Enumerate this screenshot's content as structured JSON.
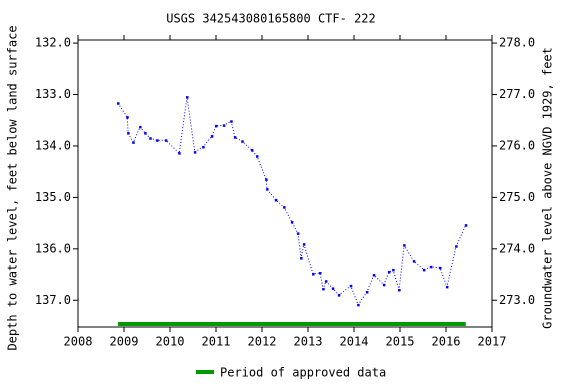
{
  "chart_data": {
    "type": "line",
    "title": "USGS 342543080165800 CTF- 222",
    "y_label": "Depth to water level, feet below land surface",
    "y2_label": "Groundwater level above NGVD 1929, feet",
    "xlim": [
      2008,
      2017
    ],
    "xticks": [
      2008,
      2009,
      2010,
      2011,
      2012,
      2013,
      2014,
      2015,
      2016,
      2017
    ],
    "ylim": [
      131.94,
      137.52
    ],
    "yticks": [
      {
        "value": 132,
        "label": "132.0"
      },
      {
        "value": 133,
        "label": "133.0"
      },
      {
        "value": 134,
        "label": "134.0"
      },
      {
        "value": 135,
        "label": "135.0"
      },
      {
        "value": 136,
        "label": "136.0"
      },
      {
        "value": 137,
        "label": "137.0"
      }
    ],
    "y_inverted": true,
    "y2lim": [
      278.06,
      272.48
    ],
    "y2ticks": [
      {
        "value": 278,
        "label": "278.0"
      },
      {
        "value": 277,
        "label": "277.0"
      },
      {
        "value": 276,
        "label": "276.0"
      },
      {
        "value": 275,
        "label": "275.0"
      },
      {
        "value": 274,
        "label": "274.0"
      },
      {
        "value": 273,
        "label": "273.0"
      }
    ],
    "x": [
      2008.87,
      2009.07,
      2009.09,
      2009.2,
      2009.35,
      2009.46,
      2009.57,
      2009.72,
      2009.91,
      2010.2,
      2010.37,
      2010.54,
      2010.72,
      2010.91,
      2011.0,
      2011.17,
      2011.33,
      2011.41,
      2011.57,
      2011.78,
      2011.89,
      2012.09,
      2012.11,
      2012.3,
      2012.48,
      2012.65,
      2012.78,
      2012.85,
      2012.91,
      2013.11,
      2013.26,
      2013.33,
      2013.39,
      2013.54,
      2013.67,
      2013.93,
      2014.09,
      2014.28,
      2014.43,
      2014.65,
      2014.76,
      2014.85,
      2014.98,
      2015.09,
      2015.3,
      2015.52,
      2015.67,
      2015.87,
      2016.02,
      2016.22,
      2016.43
    ],
    "series": [
      {
        "color": "#0000ff",
        "values": [
          133.17,
          133.44,
          133.75,
          133.93,
          133.63,
          133.75,
          133.85,
          133.89,
          133.89,
          134.14,
          133.05,
          134.12,
          134.02,
          133.81,
          133.61,
          133.6,
          133.52,
          133.83,
          133.91,
          134.08,
          134.2,
          134.65,
          134.84,
          135.05,
          135.19,
          135.48,
          135.7,
          136.18,
          135.91,
          136.49,
          136.47,
          136.78,
          136.63,
          136.77,
          136.9,
          136.72,
          137.09,
          136.84,
          136.51,
          136.7,
          136.45,
          136.41,
          136.8,
          135.93,
          136.24,
          136.41,
          136.35,
          136.37,
          136.74,
          135.95,
          135.54
        ]
      }
    ],
    "approved_period": {
      "name": "Period of approved data",
      "color": "#009900",
      "x": [
        2008.87,
        2016.43
      ]
    }
  }
}
